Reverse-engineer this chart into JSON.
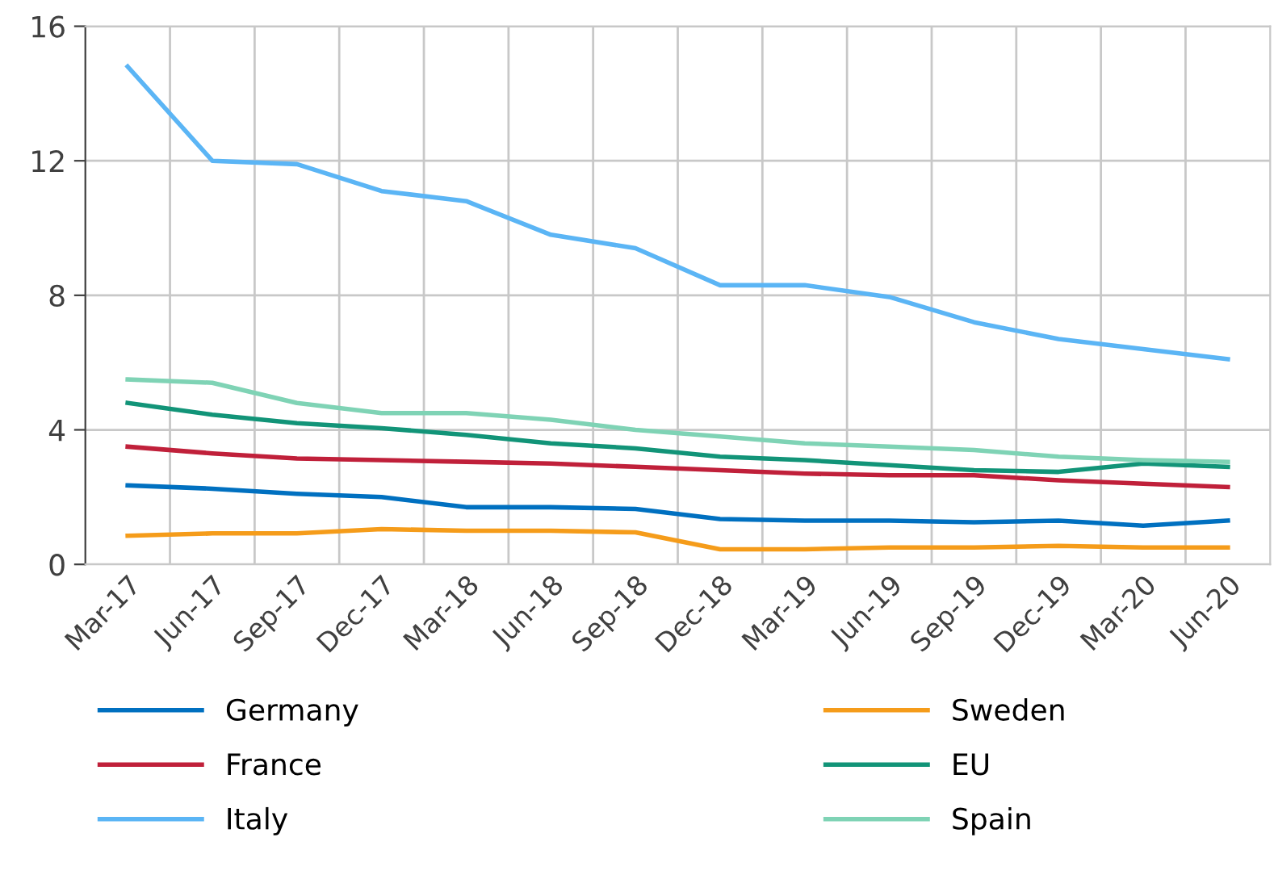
{
  "chart_data": {
    "type": "line",
    "categories": [
      "Mar-17",
      "Jun-17",
      "Sep-17",
      "Dec-17",
      "Mar-18",
      "Jun-18",
      "Sep-18",
      "Dec-18",
      "Mar-19",
      "Jun-19",
      "Sep-19",
      "Dec-19",
      "Mar-20",
      "Jun-20"
    ],
    "series": [
      {
        "name": "Germany",
        "color": "#0070c0",
        "values": [
          2.35,
          2.25,
          2.1,
          2.0,
          1.7,
          1.7,
          1.65,
          1.35,
          1.3,
          1.3,
          1.25,
          1.3,
          1.15,
          1.3
        ]
      },
      {
        "name": "France",
        "color": "#c0203a",
        "values": [
          3.5,
          3.3,
          3.15,
          3.1,
          3.05,
          3.0,
          2.9,
          2.8,
          2.7,
          2.65,
          2.65,
          2.5,
          2.4,
          2.3
        ]
      },
      {
        "name": "Italy",
        "color": "#5bb5f5",
        "values": [
          14.8,
          12.0,
          11.9,
          11.1,
          10.8,
          9.8,
          9.4,
          8.3,
          8.3,
          7.95,
          7.2,
          6.7,
          6.4,
          6.1
        ]
      },
      {
        "name": "Sweden",
        "color": "#f59c1a",
        "values": [
          0.85,
          0.92,
          0.92,
          1.05,
          1.0,
          1.0,
          0.95,
          0.45,
          0.45,
          0.5,
          0.5,
          0.55,
          0.5,
          0.5
        ]
      },
      {
        "name": "EU",
        "color": "#129478",
        "values": [
          4.8,
          4.45,
          4.2,
          4.05,
          3.85,
          3.6,
          3.45,
          3.2,
          3.1,
          2.95,
          2.8,
          2.75,
          3.0,
          2.9
        ]
      },
      {
        "name": "Spain",
        "color": "#7fd3b5",
        "values": [
          5.5,
          5.4,
          4.8,
          4.5,
          4.5,
          4.3,
          4.0,
          3.8,
          3.6,
          3.5,
          3.4,
          3.2,
          3.1,
          3.05
        ]
      }
    ],
    "ylim": [
      0,
      16
    ],
    "yticks": [
      0,
      4,
      8,
      12,
      16
    ],
    "grid": true,
    "legend": "bottom",
    "marker": "none",
    "line_style": "solid"
  }
}
